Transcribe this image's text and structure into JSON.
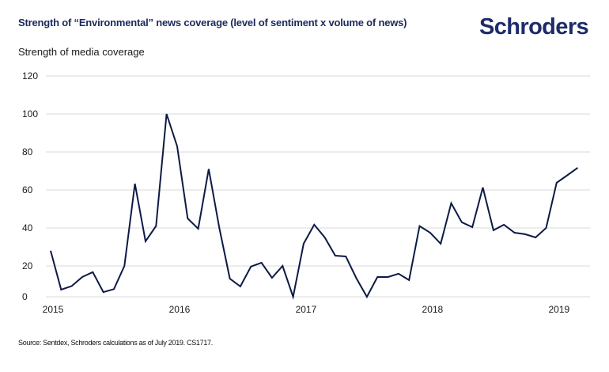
{
  "header": {
    "title": "Strength of “Environmental” news coverage (level of sentiment x volume of news)",
    "logo_text": "Schroders"
  },
  "footer": {
    "source": "Source: Sentdex, Schroders calculations as of July 2019. CS1717."
  },
  "colors": {
    "line": "#0d1a45",
    "title": "#1b2a5c",
    "logo": "#1e2b6b",
    "grid": "#d9d9d9"
  },
  "chart_data": {
    "type": "line",
    "title": "Strength of “Environmental” news coverage (level of sentiment x volume of news)",
    "xlabel": "",
    "ylabel": "Strength of media coverage",
    "ylim": [
      0,
      120
    ],
    "yticks": [
      0,
      20,
      40,
      60,
      80,
      100,
      120
    ],
    "xtick_labels": [
      "2015",
      "2016",
      "2017",
      "2018",
      "2019"
    ],
    "x_start": "2015-01",
    "x_frequency": "monthly",
    "grid": true,
    "legend": "none",
    "series": [
      {
        "name": "Strength of media coverage",
        "values": [
          28,
          4.6,
          7,
          12.8,
          16,
          3,
          5,
          20,
          63.3,
          33,
          41,
          100,
          83,
          45,
          39.6,
          71,
          40,
          11.8,
          6.7,
          19.6,
          21.7,
          12.3,
          20,
          0,
          31.7,
          41.7,
          35,
          25.4,
          25,
          12,
          0,
          12.8,
          12.8,
          15,
          10.8,
          41,
          37.5,
          31.7,
          53,
          43,
          40.4,
          61.3,
          38.8,
          41.7,
          37.5,
          36.7,
          35,
          40,
          63.8,
          67.7,
          71.7
        ]
      }
    ]
  }
}
